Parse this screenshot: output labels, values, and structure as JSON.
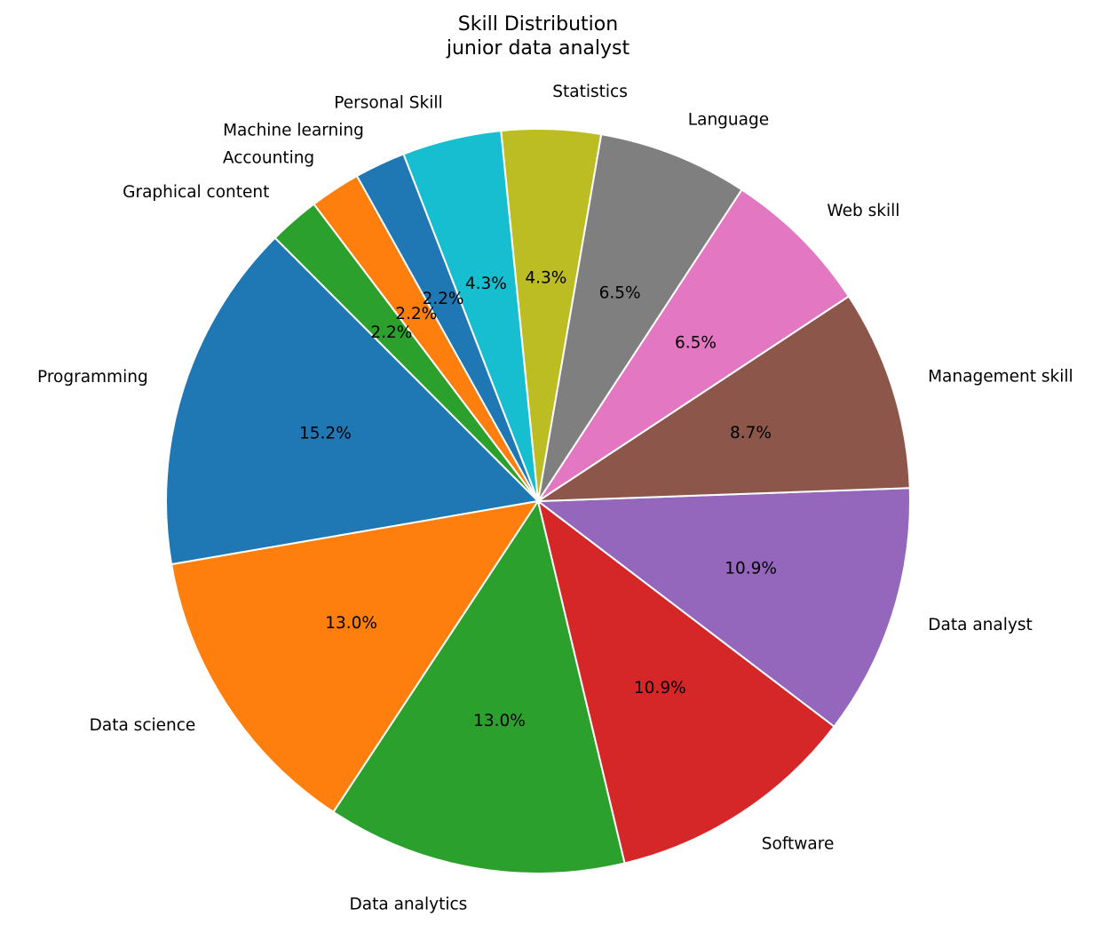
{
  "chart_data": {
    "type": "pie",
    "title": "Skill Distribution",
    "subtitle": "junior data analyst",
    "start_angle_deg": 135,
    "direction": "counterclockwise",
    "slices": [
      {
        "label": "Programming",
        "value": 15.2,
        "pct_label": "15.2%",
        "color": "#1f77b4"
      },
      {
        "label": "Data science",
        "value": 13.0,
        "pct_label": "13.0%",
        "color": "#ff7f0e"
      },
      {
        "label": "Data analytics",
        "value": 13.0,
        "pct_label": "13.0%",
        "color": "#2ca02c"
      },
      {
        "label": "Software",
        "value": 10.9,
        "pct_label": "10.9%",
        "color": "#d62728"
      },
      {
        "label": "Data analyst",
        "value": 10.9,
        "pct_label": "10.9%",
        "color": "#9467bd"
      },
      {
        "label": "Management skill",
        "value": 8.7,
        "pct_label": "8.7%",
        "color": "#8c564b"
      },
      {
        "label": "Web skill",
        "value": 6.5,
        "pct_label": "6.5%",
        "color": "#e377c2"
      },
      {
        "label": "Language",
        "value": 6.5,
        "pct_label": "6.5%",
        "color": "#7f7f7f"
      },
      {
        "label": "Statistics",
        "value": 4.3,
        "pct_label": "4.3%",
        "color": "#bcbd22"
      },
      {
        "label": "Personal Skill",
        "value": 4.3,
        "pct_label": "4.3%",
        "color": "#17becf"
      },
      {
        "label": "Machine learning",
        "value": 2.2,
        "pct_label": "2.2%",
        "color": "#1f77b4"
      },
      {
        "label": "Accounting",
        "value": 2.2,
        "pct_label": "2.2%",
        "color": "#ff7f0e"
      },
      {
        "label": "Graphical content",
        "value": 2.2,
        "pct_label": "2.2%",
        "color": "#2ca02c"
      }
    ]
  }
}
